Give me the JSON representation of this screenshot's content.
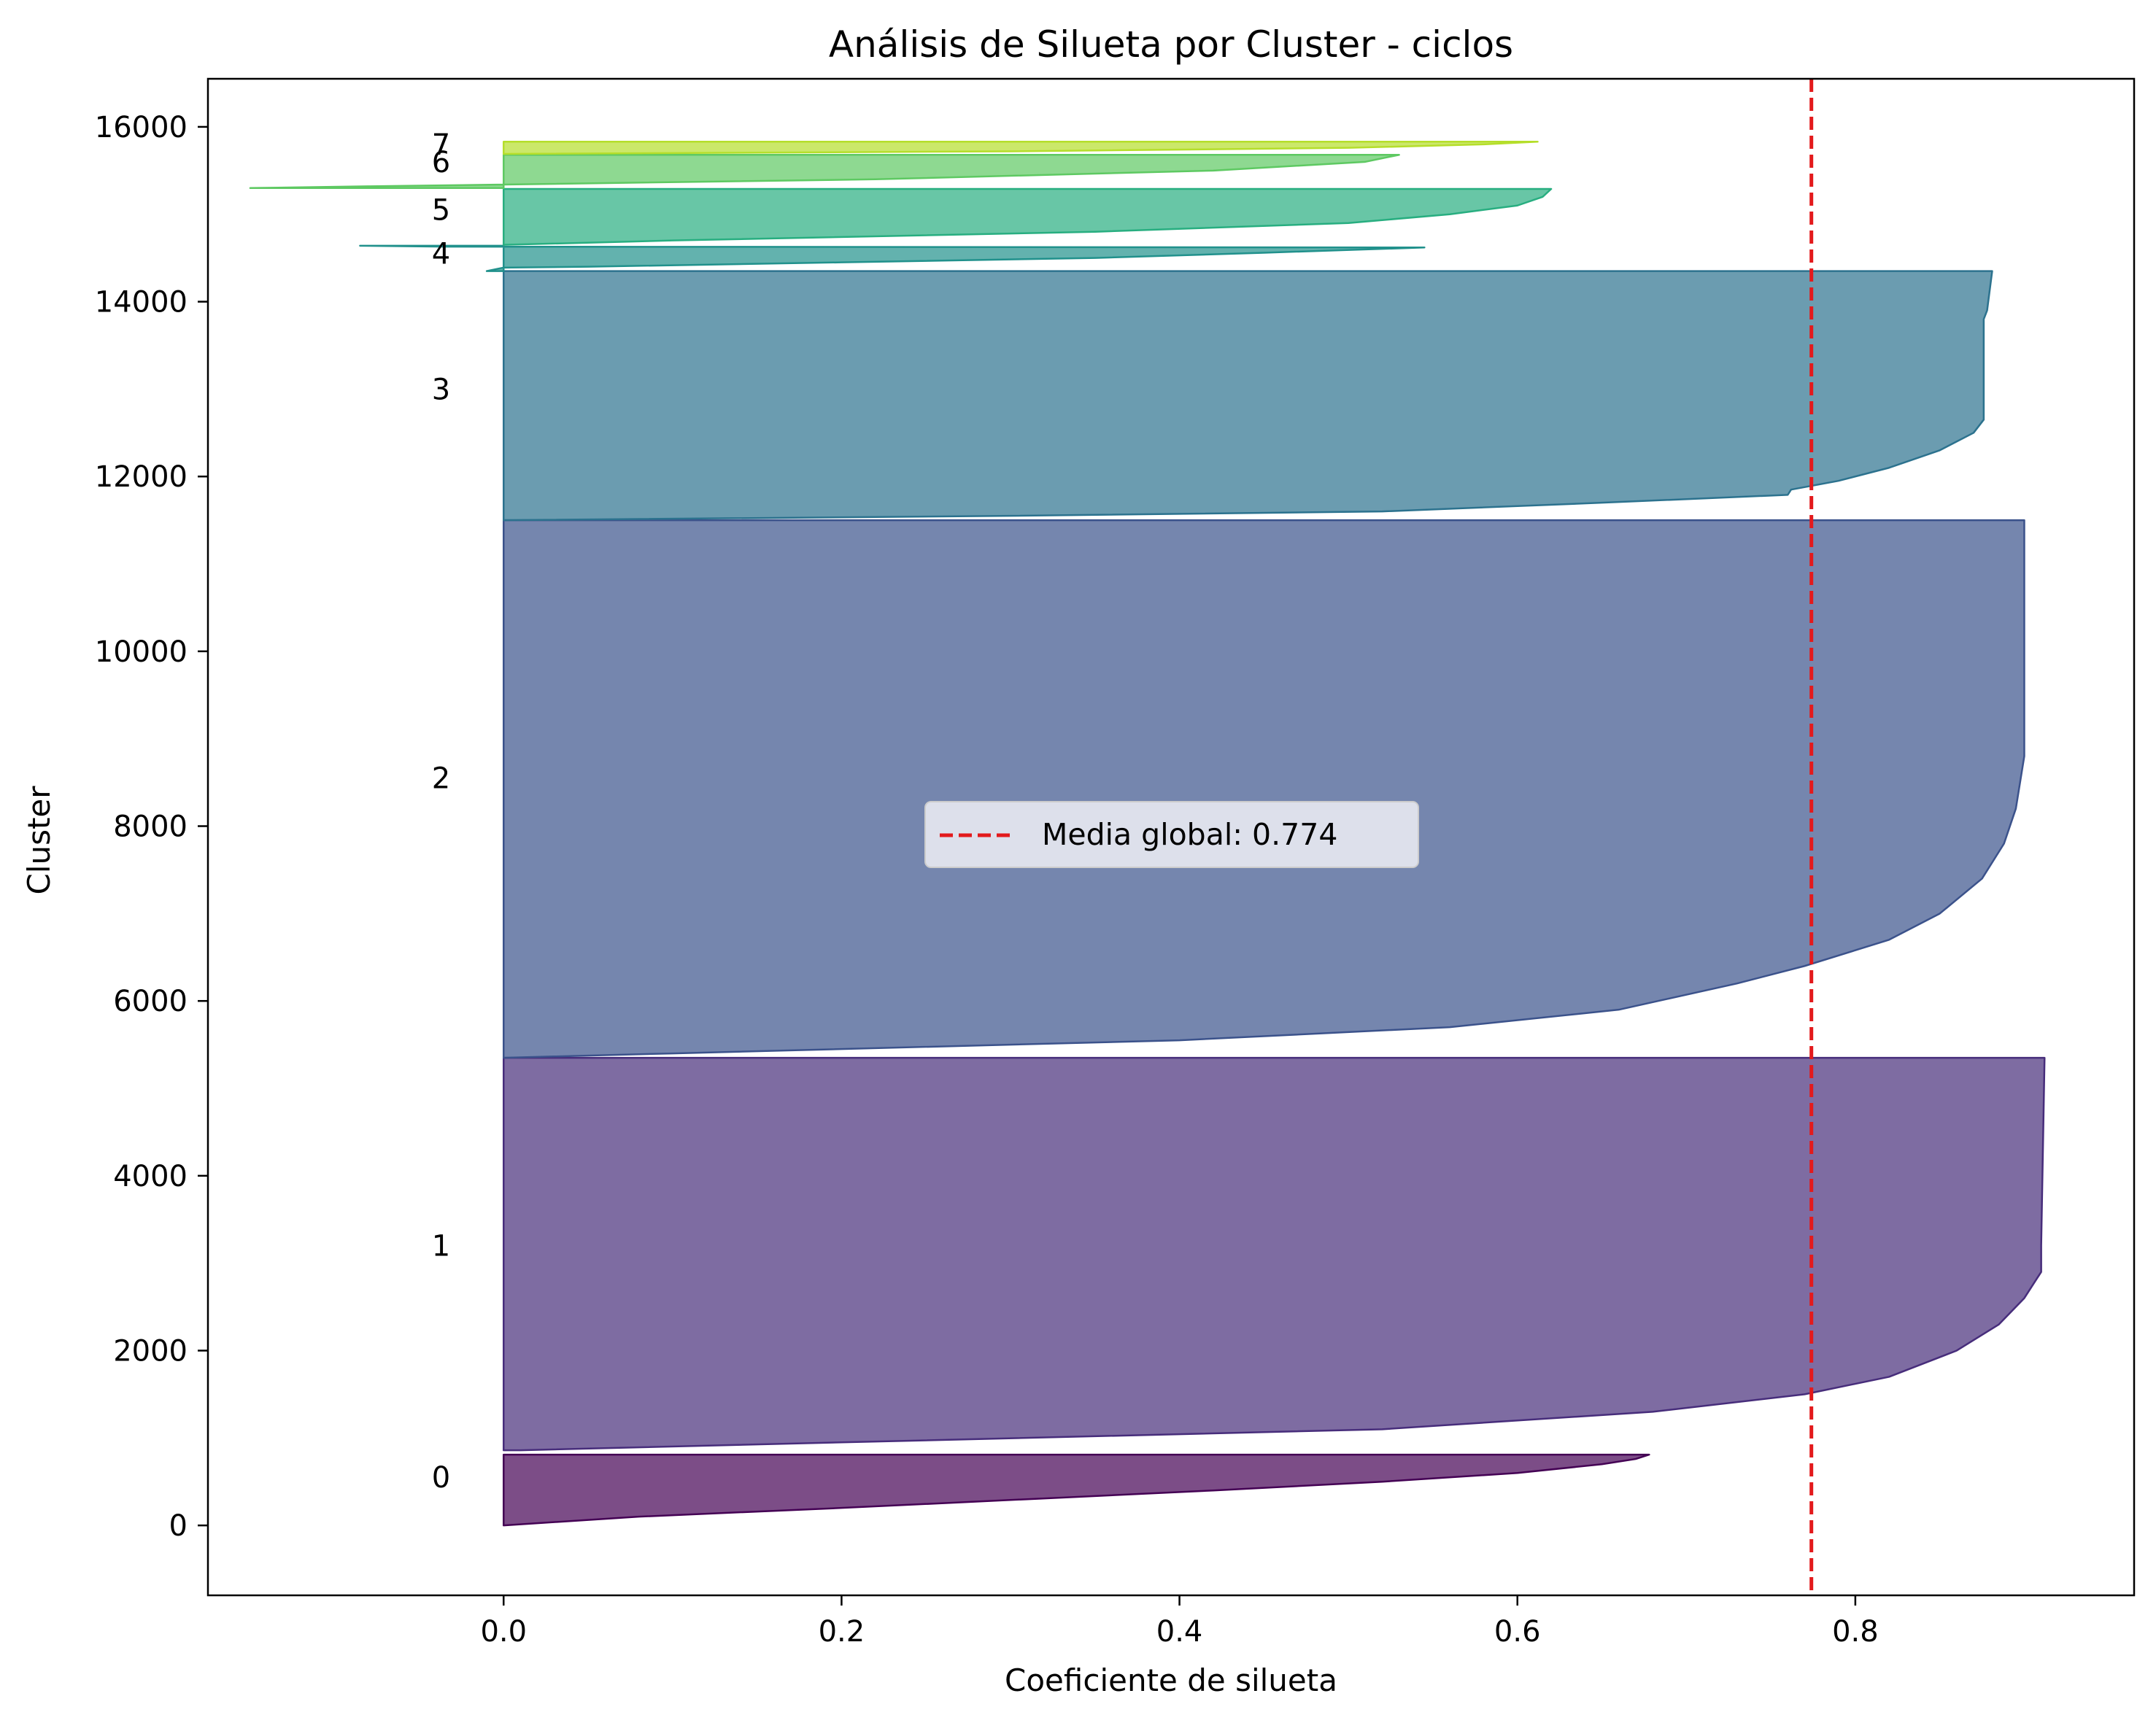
{
  "chart_data": {
    "type": "area",
    "title": "Análisis de Silueta por Cluster - ciclos",
    "xlabel": "Coeficiente de silueta",
    "ylabel": "Cluster",
    "xlim": [
      -0.175,
      0.965
    ],
    "ylim": [
      -800,
      16550
    ],
    "grid": false,
    "legend_position": "center",
    "x_ticks": [
      "0.0",
      "0.2",
      "0.4",
      "0.6",
      "0.8"
    ],
    "x_tick_values": [
      0.0,
      0.2,
      0.4,
      0.6,
      0.8
    ],
    "y_ticks": [
      "0",
      "2000",
      "4000",
      "6000",
      "8000",
      "10000",
      "12000",
      "14000",
      "16000"
    ],
    "y_tick_values": [
      0,
      2000,
      4000,
      6000,
      8000,
      10000,
      12000,
      14000,
      16000
    ],
    "mean_line": {
      "value": 0.774,
      "label": "Media global: 0.774",
      "color": "#e31a1c"
    },
    "clusters": [
      {
        "label": "0",
        "label_y": 550,
        "color": "#440154",
        "profile": [
          [
            0,
            0.0
          ],
          [
            100,
            0.08
          ],
          [
            200,
            0.2
          ],
          [
            300,
            0.31
          ],
          [
            400,
            0.42
          ],
          [
            500,
            0.52
          ],
          [
            600,
            0.6
          ],
          [
            700,
            0.65
          ],
          [
            760,
            0.67
          ],
          [
            810,
            0.678
          ]
        ]
      },
      {
        "label": "1",
        "label_y": 3200,
        "color": "#472d7b",
        "profile": [
          [
            860,
            0.01
          ],
          [
            950,
            0.2
          ],
          [
            1100,
            0.52
          ],
          [
            1300,
            0.68
          ],
          [
            1500,
            0.77
          ],
          [
            1700,
            0.82
          ],
          [
            2000,
            0.86
          ],
          [
            2300,
            0.885
          ],
          [
            2600,
            0.9
          ],
          [
            2900,
            0.91
          ],
          [
            3200,
            0.91
          ],
          [
            5350,
            0.912
          ]
        ]
      },
      {
        "label": "2",
        "label_y": 8550,
        "color": "#3b528b",
        "profile": [
          [
            5350,
            0.0
          ],
          [
            5400,
            0.1
          ],
          [
            5550,
            0.4
          ],
          [
            5700,
            0.56
          ],
          [
            5900,
            0.66
          ],
          [
            6200,
            0.73
          ],
          [
            6400,
            0.77
          ],
          [
            6700,
            0.82
          ],
          [
            7000,
            0.85
          ],
          [
            7400,
            0.875
          ],
          [
            7800,
            0.888
          ],
          [
            8200,
            0.895
          ],
          [
            8800,
            0.9
          ],
          [
            10000,
            0.9
          ],
          [
            11500,
            0.9
          ]
        ]
      },
      {
        "label": "3",
        "label_y": 13000,
        "color": "#2c728e",
        "profile": [
          [
            11500,
            0.0
          ],
          [
            11550,
            0.3
          ],
          [
            11600,
            0.52
          ],
          [
            11700,
            0.65
          ],
          [
            11790,
            0.76
          ],
          [
            11850,
            0.762
          ],
          [
            11950,
            0.79
          ],
          [
            12100,
            0.82
          ],
          [
            12300,
            0.85
          ],
          [
            12500,
            0.87
          ],
          [
            12650,
            0.876
          ],
          [
            12800,
            0.876
          ],
          [
            13400,
            0.876
          ],
          [
            13800,
            0.876
          ],
          [
            13900,
            0.878
          ],
          [
            14350,
            0.881
          ]
        ]
      },
      {
        "label": "4",
        "label_y": 14550,
        "color": "#21918c",
        "profile": [
          [
            14350,
            -0.01
          ],
          [
            14390,
            0.0
          ],
          [
            14400,
            0.05
          ],
          [
            14450,
            0.2
          ],
          [
            14500,
            0.35
          ],
          [
            14560,
            0.45
          ],
          [
            14620,
            0.545
          ],
          [
            14630,
            -0.035
          ],
          [
            14640,
            -0.085
          ]
        ]
      },
      {
        "label": "5",
        "label_y": 15050,
        "color": "#28ae80",
        "profile": [
          [
            14650,
            0.0
          ],
          [
            14700,
            0.1
          ],
          [
            14800,
            0.35
          ],
          [
            14900,
            0.5
          ],
          [
            15000,
            0.56
          ],
          [
            15100,
            0.6
          ],
          [
            15200,
            0.615
          ],
          [
            15290,
            0.62
          ]
        ]
      },
      {
        "label": "6",
        "label_y": 15600,
        "color": "#5ec962",
        "profile": [
          [
            15300,
            -0.15
          ],
          [
            15320,
            -0.08
          ],
          [
            15340,
            0.0
          ],
          [
            15400,
            0.22
          ],
          [
            15500,
            0.42
          ],
          [
            15600,
            0.51
          ],
          [
            15680,
            0.53
          ]
        ]
      },
      {
        "label": "7",
        "label_y": 15800,
        "color": "#b5de2b",
        "profile": [
          [
            15690,
            0.0
          ],
          [
            15720,
            0.3
          ],
          [
            15760,
            0.5
          ],
          [
            15800,
            0.58
          ],
          [
            15830,
            0.612
          ]
        ]
      }
    ]
  }
}
